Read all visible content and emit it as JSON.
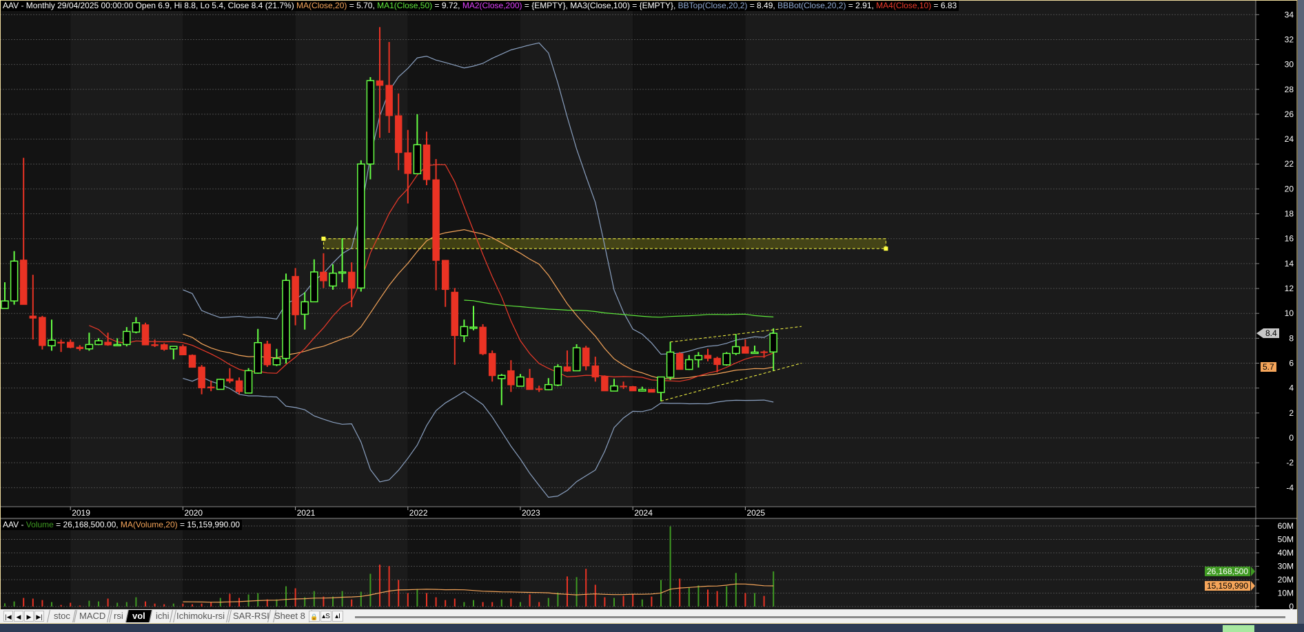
{
  "header": {
    "prefix": "AAV - Monthly 29/04/2025 00:00:00 Open 6.9, Hi 8.8, Lo 5.4, Close 8.4 (21.7%) ",
    "parts": [
      {
        "label": "MA(Close,20)",
        "value": " = 5.70, ",
        "color": "#f5a55a"
      },
      {
        "label": "MA1(Close,50)",
        "value": " = 9.72, ",
        "color": "#5fe83c"
      },
      {
        "label": "MA2(Close,200)",
        "value": " = {EMPTY}, ",
        "color": "#e040fb"
      },
      {
        "label": "MA3(Close,100)",
        "value": " = {EMPTY}, ",
        "color": "#ffffff"
      },
      {
        "label": "BBTop(Close,20,2)",
        "value": " = 8.49, ",
        "color": "#8fa8d0"
      },
      {
        "label": "BBBot(Close,20,2)",
        "value": " = 2.91, ",
        "color": "#8fa8d0"
      },
      {
        "label": "MA4(Close,10)",
        "value": " = 6.83",
        "color": "#ee3a2a"
      }
    ]
  },
  "volume_header": {
    "prefix": "AAV - ",
    "vol_label": "Volume",
    "vol_value": " = 26,168,500.00, ",
    "ma_label": "MA(Volume,20)",
    "ma_value": " = 15,159,990.00"
  },
  "price_tags": {
    "close": "8.4",
    "ma20": "5.7"
  },
  "volume_tags": {
    "volume": "26,168,500",
    "ma": "15,159,990"
  },
  "x_axis": {
    "years": [
      {
        "label": "2019",
        "date": "2019-01"
      },
      {
        "label": "2020",
        "date": "2020-01"
      },
      {
        "label": "2021",
        "date": "2021-01"
      },
      {
        "label": "2022",
        "date": "2022-01"
      },
      {
        "label": "2023",
        "date": "2023-01"
      },
      {
        "label": "2024",
        "date": "2024-01"
      },
      {
        "label": "2025",
        "date": "2025-01"
      }
    ]
  },
  "chart_data": {
    "type": "candlestick",
    "symbol": "AAV",
    "interval": "Monthly",
    "y_axis": {
      "range": [
        -5.5,
        35
      ],
      "ticks": [
        "-4",
        "-2",
        "0",
        "2",
        "4",
        "6",
        "8",
        "10",
        "12",
        "14",
        "16",
        "18",
        "20",
        "22",
        "24",
        "26",
        "28",
        "30",
        "32",
        "34"
      ]
    },
    "volume_axis": {
      "range": [
        0,
        60
      ],
      "unit": "M",
      "ticks": [
        "0",
        "10M",
        "20M",
        "30M",
        "40M",
        "50M",
        "60M"
      ]
    },
    "grid": true,
    "colors": {
      "up": "#66ff44",
      "down": "#ea3324",
      "vol_up": "#3f9a22",
      "vol_down": "#ea3324",
      "ma10": "#ee3a2a",
      "ma20": "#f5a55a",
      "ma50": "#5fe83c",
      "bb": "#8aa0c0",
      "drawing": "#ffff44"
    },
    "columns": [
      "date",
      "open",
      "high",
      "low",
      "close",
      "volume_m"
    ],
    "candles": [
      [
        "2018-06",
        10.4,
        12.5,
        10.4,
        11.0,
        2.4
      ],
      [
        "2018-07",
        11.0,
        15.0,
        10.7,
        14.2,
        3.8
      ],
      [
        "2018-08",
        14.3,
        22.5,
        10.7,
        10.7,
        6.4
      ],
      [
        "2018-09",
        9.8,
        13.1,
        7.9,
        9.6,
        5.9
      ],
      [
        "2018-10",
        9.7,
        9.8,
        7.1,
        7.4,
        4.8
      ],
      [
        "2018-11",
        7.4,
        9.5,
        7.0,
        7.85,
        3.3
      ],
      [
        "2018-12",
        7.7,
        7.9,
        6.9,
        7.6,
        1.2
      ],
      [
        "2019-01",
        7.7,
        7.9,
        7.2,
        7.25,
        2.8
      ],
      [
        "2019-02",
        7.3,
        7.45,
        7.0,
        7.15,
        0.7
      ],
      [
        "2019-03",
        7.15,
        8.45,
        7.0,
        7.5,
        4.3
      ],
      [
        "2019-04",
        7.5,
        8.0,
        7.45,
        7.8,
        3.8
      ],
      [
        "2019-05",
        7.7,
        8.45,
        7.4,
        7.45,
        5.9
      ],
      [
        "2019-06",
        7.4,
        8.0,
        7.4,
        7.5,
        2.8
      ],
      [
        "2019-07",
        7.5,
        8.9,
        7.35,
        8.55,
        3.3
      ],
      [
        "2019-08",
        8.5,
        9.7,
        8.4,
        9.25,
        6.9
      ],
      [
        "2019-09",
        9.1,
        9.25,
        7.45,
        7.45,
        3.8
      ],
      [
        "2019-10",
        7.5,
        7.9,
        7.3,
        7.4,
        2.2
      ],
      [
        "2019-11",
        7.5,
        7.6,
        7.0,
        7.1,
        1.7
      ],
      [
        "2019-12",
        7.15,
        7.35,
        6.3,
        7.35,
        2.2
      ],
      [
        "2020-01",
        7.35,
        7.5,
        6.65,
        6.65,
        2.2
      ],
      [
        "2020-02",
        6.65,
        6.7,
        5.65,
        5.65,
        1.7
      ],
      [
        "2020-03",
        5.7,
        5.85,
        3.5,
        4.0,
        2.2
      ],
      [
        "2020-04",
        4.1,
        4.6,
        3.75,
        4.0,
        3.3
      ],
      [
        "2020-05",
        3.9,
        4.75,
        3.9,
        4.7,
        6.4
      ],
      [
        "2020-06",
        4.75,
        5.6,
        4.4,
        4.55,
        9.5
      ],
      [
        "2020-07",
        4.6,
        4.85,
        3.5,
        3.7,
        6.4
      ],
      [
        "2020-08",
        3.6,
        5.6,
        3.6,
        5.4,
        9.0
      ],
      [
        "2020-09",
        5.2,
        8.75,
        5.15,
        7.65,
        10.0
      ],
      [
        "2020-10",
        7.55,
        7.8,
        5.7,
        5.85,
        5.3
      ],
      [
        "2020-11",
        5.87,
        7.15,
        5.77,
        6.38,
        5.3
      ],
      [
        "2020-12",
        6.38,
        13.2,
        5.97,
        12.65,
        15.1
      ],
      [
        "2021-01",
        12.99,
        13.64,
        9.04,
        9.87,
        13.6
      ],
      [
        "2021-02",
        9.93,
        11.7,
        8.7,
        10.93,
        6.9
      ],
      [
        "2021-03",
        10.93,
        14.34,
        10.9,
        13.33,
        11.5
      ],
      [
        "2021-04",
        13.33,
        14.83,
        12.04,
        12.6,
        7.4
      ],
      [
        "2021-05",
        12.2,
        13.94,
        11.9,
        13.23,
        7.4
      ],
      [
        "2021-06",
        13.23,
        16.04,
        12.5,
        13.33,
        11.5
      ],
      [
        "2021-07",
        13.33,
        14.1,
        10.5,
        12.0,
        5.3
      ],
      [
        "2021-08",
        12.04,
        22.3,
        11.75,
        22.0,
        11.0
      ],
      [
        "2021-09",
        22.0,
        28.98,
        20.77,
        28.7,
        24.4
      ],
      [
        "2021-10",
        28.7,
        33.0,
        24.1,
        28.3,
        31.2
      ],
      [
        "2021-11",
        28.34,
        31.8,
        24.5,
        25.87,
        30.1
      ],
      [
        "2021-12",
        25.9,
        27.67,
        21.5,
        22.9,
        19.8
      ],
      [
        "2022-01",
        22.92,
        24.74,
        18.83,
        21.22,
        10.0
      ],
      [
        "2022-02",
        21.22,
        26.0,
        21.22,
        23.55,
        13.1
      ],
      [
        "2022-03",
        23.55,
        24.6,
        20.3,
        20.73,
        10.0
      ],
      [
        "2022-04",
        20.75,
        22.4,
        11.86,
        14.24,
        6.9
      ],
      [
        "2022-05",
        14.28,
        14.3,
        10.52,
        11.9,
        4.8
      ],
      [
        "2022-06",
        11.72,
        12.04,
        5.87,
        8.2,
        5.9
      ],
      [
        "2022-07",
        8.2,
        9.5,
        7.7,
        8.94,
        3.3
      ],
      [
        "2022-08",
        8.8,
        10.6,
        8.64,
        8.9,
        4.8
      ],
      [
        "2022-09",
        8.91,
        9.13,
        6.65,
        6.74,
        3.3
      ],
      [
        "2022-10",
        6.8,
        7.02,
        4.52,
        4.98,
        3.3
      ],
      [
        "2022-11",
        4.76,
        5.13,
        2.63,
        5.02,
        5.3
      ],
      [
        "2022-12",
        5.41,
        6.24,
        3.69,
        4.24,
        5.9
      ],
      [
        "2023-01",
        4.15,
        5.13,
        4.15,
        4.89,
        3.3
      ],
      [
        "2023-02",
        4.8,
        5.54,
        3.87,
        3.87,
        9.0
      ],
      [
        "2023-03",
        3.95,
        4.19,
        3.69,
        3.93,
        3.3
      ],
      [
        "2023-04",
        3.87,
        4.8,
        3.83,
        4.28,
        6.4
      ],
      [
        "2023-05",
        4.24,
        5.91,
        4.15,
        5.72,
        10.5
      ],
      [
        "2023-06",
        5.72,
        7.02,
        5.31,
        5.35,
        22.4
      ],
      [
        "2023-07",
        5.39,
        7.52,
        5.39,
        7.24,
        21.9
      ],
      [
        "2023-08",
        7.24,
        7.39,
        5.43,
        5.76,
        28.1
      ],
      [
        "2023-09",
        5.8,
        6.52,
        4.52,
        4.87,
        16.2
      ],
      [
        "2023-10",
        4.93,
        5.02,
        3.76,
        3.76,
        6.9
      ],
      [
        "2023-11",
        3.76,
        4.74,
        3.76,
        4.17,
        6.4
      ],
      [
        "2023-12",
        4.17,
        4.52,
        3.93,
        4.13,
        7.9
      ],
      [
        "2024-01",
        4.13,
        4.17,
        3.76,
        3.76,
        9.0
      ],
      [
        "2024-02",
        3.76,
        4.11,
        3.72,
        3.89,
        5.3
      ],
      [
        "2024-03",
        3.91,
        3.91,
        3.65,
        3.65,
        7.4
      ],
      [
        "2024-04",
        3.65,
        4.89,
        2.94,
        4.89,
        19.8
      ],
      [
        "2024-05",
        4.87,
        7.72,
        4.65,
        6.89,
        59.7
      ],
      [
        "2024-06",
        6.78,
        6.89,
        5.48,
        5.48,
        20.8
      ],
      [
        "2024-07",
        5.5,
        6.65,
        5.45,
        6.28,
        14.1
      ],
      [
        "2024-08",
        6.28,
        6.89,
        5.65,
        6.61,
        15.7
      ],
      [
        "2024-09",
        6.65,
        7.15,
        6.15,
        6.37,
        12.6
      ],
      [
        "2024-10",
        6.41,
        6.52,
        5.26,
        5.87,
        11.5
      ],
      [
        "2024-11",
        5.87,
        6.89,
        5.8,
        6.78,
        15.1
      ],
      [
        "2024-12",
        6.78,
        8.35,
        6.65,
        7.33,
        25.0
      ],
      [
        "2025-01",
        7.33,
        7.91,
        6.78,
        6.78,
        10.0
      ],
      [
        "2025-02",
        6.78,
        7.41,
        6.78,
        6.89,
        10.0
      ],
      [
        "2025-03",
        6.92,
        7.02,
        6.43,
        6.89,
        7.9
      ],
      [
        "2025-04",
        6.9,
        8.8,
        5.4,
        8.4,
        26.17
      ]
    ],
    "indicators": [
      "MA(Close,10)",
      "MA(Close,20)",
      "MA(Close,50)",
      "BB(Close,20,2)",
      "MA(Volume,20)"
    ],
    "drawings": {
      "zone": {
        "from": "2021-04",
        "to": "2026-04",
        "low": 15.2,
        "high": 16.0
      },
      "trendlines": [
        {
          "from": [
            "2024-05",
            7.7
          ],
          "to": [
            "2025-07",
            8.95
          ]
        },
        {
          "from": [
            "2024-04",
            2.95
          ],
          "to": [
            "2025-07",
            6.0
          ]
        }
      ]
    }
  },
  "tabs": {
    "nav": [
      "|◀",
      "◀",
      "▶",
      "▶|"
    ],
    "items": [
      "stoc",
      "MACD",
      "rsi",
      "vol",
      "ichi",
      "Ichimoku-rsi",
      "SAR-RSI",
      "Sheet 8"
    ],
    "active": "vol",
    "buttons": [
      "🔒",
      "▴S",
      "▴I"
    ]
  }
}
